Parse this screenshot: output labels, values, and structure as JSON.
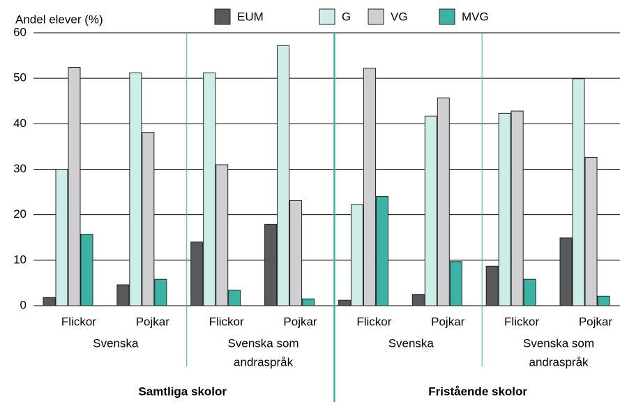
{
  "chart_data": {
    "type": "bar",
    "y_label": "Andel elever (%)",
    "categories": [
      "Flickor",
      "Pojkar",
      "Flickor",
      "Pojkar",
      "Flickor",
      "Pojkar",
      "Flickor",
      "Pojkar"
    ],
    "subgroups": [
      {
        "lines": [
          "Svenska"
        ]
      },
      {
        "lines": [
          "Svenska som",
          "andraspråk"
        ]
      },
      {
        "lines": [
          "Svenska"
        ]
      },
      {
        "lines": [
          "Svenska som",
          "andraspråk"
        ]
      }
    ],
    "groups": [
      "Samtliga skolor",
      "Fristående skolor"
    ],
    "series": [
      {
        "name": "EUM",
        "color": "#58595b",
        "values": [
          1.8,
          4.6,
          14,
          17.9,
          1.2,
          2.5,
          8.7,
          14.9
        ]
      },
      {
        "name": "G",
        "color": "#cdeee8",
        "values": [
          30,
          51.2,
          51.2,
          57.2,
          22.2,
          41.7,
          42.3,
          49.9
        ]
      },
      {
        "name": "VG",
        "color": "#cfcfd1",
        "values": [
          52.4,
          38.1,
          31,
          23.1,
          52.2,
          45.7,
          42.8,
          32.6
        ]
      },
      {
        "name": "MVG",
        "color": "#3bb3a4",
        "values": [
          15.7,
          5.8,
          3.4,
          1.5,
          24,
          9.7,
          5.8,
          2.1
        ]
      }
    ],
    "ylim": [
      0,
      60
    ],
    "yticks": [
      0,
      10,
      20,
      30,
      40,
      50,
      60
    ],
    "grid": true,
    "legend": "top"
  }
}
